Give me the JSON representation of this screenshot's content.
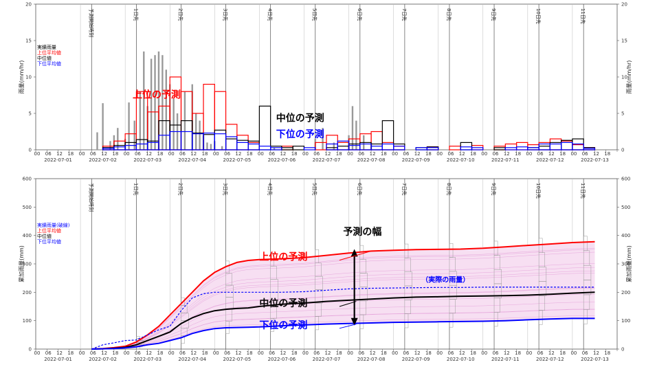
{
  "chart_data": [
    {
      "type": "bar",
      "title": "",
      "ylabel": "雨量(mm/hr)",
      "ylim": [
        0,
        20
      ],
      "yticks": [
        0,
        5,
        10,
        15,
        20
      ],
      "x_start": "2022-07-01 00:00",
      "x_end": "2022-07-13 24:00",
      "x_hour_labels": [
        "00",
        "06",
        "12",
        "18"
      ],
      "x_date_labels": [
        "2022-07-01",
        "2022-07-02",
        "2022-07-03",
        "2022-07-04",
        "2022-07-05",
        "2022-07-06",
        "2022-07-07",
        "2022-07-08",
        "2022-07-09",
        "2022-07-10",
        "2022-07-11",
        "2022-07-12",
        "2022-07-13"
      ],
      "forecast_start_label": "予測開始時刻",
      "day_markers": [
        "1日先",
        "2日先",
        "3日先",
        "4日先",
        "5日先",
        "6日先",
        "7日先",
        "8日先",
        "9日先",
        "10日先",
        "11日先"
      ],
      "legend": [
        {
          "label": "実績雨量",
          "color": "#000000"
        },
        {
          "label": "上位平均値",
          "color": "#ff0000"
        },
        {
          "label": "中位値",
          "color": "#000000"
        },
        {
          "label": "下位平均値",
          "color": "#0000ff"
        }
      ],
      "observed": {
        "name": "実績雨量",
        "x_hours": [
          33,
          36,
          40,
          42,
          44,
          48,
          50,
          53,
          56,
          58,
          60,
          62,
          64,
          66,
          68,
          70,
          72,
          74,
          76,
          80,
          84,
          86,
          88,
          90,
          92,
          94,
          96,
          100,
          128,
          150,
          154,
          160,
          168,
          170,
          172,
          176,
          180
        ],
        "values": [
          2.4,
          6.4,
          1.2,
          2.0,
          3.0,
          1.5,
          6.5,
          4.0,
          8.0,
          13.5,
          6.0,
          12.5,
          13.0,
          13.5,
          13.0,
          11.0,
          9.0,
          7.0,
          5.0,
          8.0,
          9.0,
          5.0,
          4.0,
          2.0,
          1.0,
          0.8,
          1.2,
          0.5,
          0.3,
          1.5,
          3.0,
          1.0,
          2.0,
          6.0,
          4.0,
          2.0,
          1.0
        ]
      },
      "series": [
        {
          "name": "上位の予測",
          "color": "#ff0000",
          "bins": [
            [
              36,
              42,
              0.5
            ],
            [
              42,
              48,
              1.2
            ],
            [
              48,
              54,
              2.2
            ],
            [
              54,
              60,
              8.0
            ],
            [
              60,
              66,
              5.2
            ],
            [
              66,
              72,
              6.0
            ],
            [
              72,
              78,
              10.0
            ],
            [
              78,
              84,
              8.0
            ],
            [
              84,
              90,
              5.0
            ],
            [
              90,
              96,
              9.0
            ],
            [
              96,
              102,
              8.0
            ],
            [
              102,
              108,
              3.5
            ],
            [
              108,
              114,
              2.0
            ],
            [
              114,
              120,
              1.0
            ],
            [
              132,
              138,
              0.5
            ],
            [
              150,
              156,
              1.0
            ],
            [
              156,
              162,
              2.0
            ],
            [
              162,
              168,
              1.0
            ],
            [
              168,
              174,
              1.5
            ],
            [
              174,
              180,
              2.2
            ],
            [
              180,
              186,
              2.5
            ],
            [
              186,
              192,
              1.0
            ],
            [
              192,
              198,
              0.5
            ],
            [
              210,
              216,
              0.4
            ],
            [
              222,
              228,
              0.5
            ],
            [
              234,
              240,
              0.6
            ],
            [
              246,
              252,
              0.5
            ],
            [
              252,
              258,
              0.8
            ],
            [
              258,
              264,
              1.0
            ],
            [
              264,
              270,
              0.7
            ],
            [
              270,
              276,
              1.0
            ],
            [
              276,
              282,
              1.5
            ],
            [
              282,
              288,
              1.2
            ],
            [
              288,
              294,
              0.7
            ],
            [
              294,
              300,
              0.3
            ]
          ]
        },
        {
          "name": "中位の予測",
          "color": "#000000",
          "bins": [
            [
              36,
              42,
              0.3
            ],
            [
              42,
              48,
              0.6
            ],
            [
              48,
              54,
              1.0
            ],
            [
              54,
              60,
              1.4
            ],
            [
              60,
              66,
              1.2
            ],
            [
              66,
              72,
              4.0
            ],
            [
              72,
              78,
              3.4
            ],
            [
              78,
              84,
              4.0
            ],
            [
              84,
              90,
              2.3
            ],
            [
              90,
              96,
              2.1
            ],
            [
              96,
              102,
              2.7
            ],
            [
              102,
              108,
              1.5
            ],
            [
              108,
              114,
              1.3
            ],
            [
              114,
              120,
              1.2
            ],
            [
              120,
              126,
              6.0
            ],
            [
              126,
              132,
              0.5
            ],
            [
              132,
              138,
              0.3
            ],
            [
              138,
              144,
              0.5
            ],
            [
              156,
              162,
              0.3
            ],
            [
              162,
              168,
              0.5
            ],
            [
              168,
              174,
              0.8
            ],
            [
              174,
              180,
              1.0
            ],
            [
              180,
              186,
              0.8
            ],
            [
              186,
              192,
              4.0
            ],
            [
              192,
              198,
              0.8
            ],
            [
              204,
              210,
              0.3
            ],
            [
              210,
              216,
              0.4
            ],
            [
              228,
              234,
              1.0
            ],
            [
              246,
              252,
              0.3
            ],
            [
              264,
              270,
              0.3
            ],
            [
              270,
              276,
              0.5
            ],
            [
              276,
              282,
              1.0
            ],
            [
              282,
              288,
              1.3
            ],
            [
              288,
              294,
              1.5
            ],
            [
              294,
              300,
              0.3
            ]
          ]
        },
        {
          "name": "下位の予測",
          "color": "#0000ff",
          "bins": [
            [
              36,
              42,
              0.2
            ],
            [
              42,
              48,
              0.4
            ],
            [
              48,
              54,
              0.6
            ],
            [
              54,
              60,
              0.8
            ],
            [
              60,
              66,
              1.0
            ],
            [
              66,
              72,
              2.0
            ],
            [
              72,
              78,
              2.5
            ],
            [
              78,
              84,
              2.5
            ],
            [
              84,
              90,
              2.2
            ],
            [
              90,
              96,
              2.3
            ],
            [
              96,
              102,
              2.2
            ],
            [
              102,
              108,
              1.8
            ],
            [
              108,
              114,
              1.0
            ],
            [
              114,
              120,
              0.8
            ],
            [
              120,
              126,
              0.5
            ],
            [
              126,
              132,
              0.3
            ],
            [
              144,
              150,
              0.3
            ],
            [
              156,
              162,
              0.8
            ],
            [
              162,
              168,
              1.2
            ],
            [
              168,
              174,
              0.6
            ],
            [
              174,
              180,
              0.8
            ],
            [
              180,
              186,
              0.5
            ],
            [
              186,
              192,
              0.8
            ],
            [
              192,
              198,
              0.5
            ],
            [
              204,
              210,
              0.3
            ],
            [
              210,
              216,
              0.3
            ],
            [
              228,
              234,
              0.4
            ],
            [
              234,
              240,
              0.3
            ],
            [
              252,
              258,
              0.3
            ],
            [
              258,
              264,
              0.4
            ],
            [
              264,
              270,
              0.3
            ],
            [
              270,
              276,
              0.8
            ],
            [
              276,
              282,
              0.8
            ],
            [
              282,
              288,
              1.0
            ],
            [
              288,
              294,
              0.8
            ],
            [
              294,
              300,
              0.2
            ]
          ]
        }
      ],
      "annotations": [
        {
          "text": "上位の予測",
          "color": "#ff0000",
          "x_hours": 52,
          "y": 7.1
        },
        {
          "text": "中位の予測",
          "color": "#000000",
          "x_hours": 129,
          "y": 3.9
        },
        {
          "text": "下位の予測",
          "color": "#0000ff",
          "x_hours": 129,
          "y": 1.7
        }
      ]
    },
    {
      "type": "line",
      "title": "",
      "ylabel": "累加雨量(mm)",
      "ylim": [
        0,
        600
      ],
      "yticks": [
        0,
        100,
        200,
        300,
        400,
        500,
        600
      ],
      "x_start": "2022-07-01 00:00",
      "x_end": "2022-07-13 24:00",
      "x_hour_labels": [
        "00",
        "06",
        "12",
        "18"
      ],
      "x_date_labels": [
        "2022-07-01",
        "2022-07-02",
        "2022-07-03",
        "2022-07-04",
        "2022-07-05",
        "2022-07-06",
        "2022-07-07",
        "2022-07-08",
        "2022-07-09",
        "2022-07-10",
        "2022-07-11",
        "2022-07-12",
        "2022-07-13"
      ],
      "forecast_start_label": "予測開始時刻",
      "day_markers": [
        "1日先",
        "2日先",
        "3日先",
        "4日先",
        "5日先",
        "6日先",
        "7日先",
        "8日先",
        "9日先",
        "10日先",
        "11日先"
      ],
      "legend": [
        {
          "label": "実績雨量(破線)",
          "color": "#0000ff"
        },
        {
          "label": "上位平均値",
          "color": "#ff0000"
        },
        {
          "label": "中位値",
          "color": "#000000"
        },
        {
          "label": "下位平均値",
          "color": "#0000ff"
        }
      ],
      "series": [
        {
          "name": "上位の予測",
          "color": "#ff0000",
          "x_hours": [
            30,
            36,
            42,
            48,
            54,
            60,
            66,
            72,
            78,
            84,
            90,
            96,
            102,
            108,
            114,
            120,
            132,
            144,
            156,
            168,
            180,
            192,
            204,
            216,
            228,
            240,
            252,
            264,
            276,
            288,
            300
          ],
          "y": [
            0,
            2,
            5,
            10,
            25,
            50,
            80,
            120,
            160,
            200,
            240,
            270,
            290,
            305,
            312,
            315,
            318,
            322,
            330,
            338,
            345,
            348,
            350,
            351,
            352,
            355,
            360,
            365,
            370,
            375,
            378
          ]
        },
        {
          "name": "中位の予測",
          "color": "#000000",
          "x_hours": [
            30,
            36,
            42,
            48,
            54,
            60,
            66,
            72,
            78,
            84,
            90,
            96,
            102,
            108,
            114,
            120,
            132,
            144,
            156,
            168,
            180,
            192,
            204,
            216,
            228,
            240,
            252,
            264,
            276,
            288,
            300
          ],
          "y": [
            0,
            1,
            3,
            6,
            15,
            30,
            45,
            60,
            90,
            110,
            125,
            135,
            140,
            143,
            145,
            150,
            158,
            162,
            168,
            172,
            176,
            180,
            183,
            184,
            186,
            187,
            188,
            190,
            193,
            197,
            200
          ]
        },
        {
          "name": "下位の予測",
          "color": "#0000ff",
          "x_hours": [
            30,
            36,
            42,
            48,
            54,
            60,
            66,
            72,
            78,
            84,
            90,
            96,
            102,
            108,
            114,
            120,
            132,
            144,
            156,
            168,
            180,
            192,
            204,
            216,
            228,
            240,
            252,
            264,
            276,
            288,
            300
          ],
          "y": [
            0,
            1,
            2,
            4,
            8,
            15,
            20,
            30,
            40,
            55,
            65,
            72,
            75,
            76,
            77,
            78,
            82,
            85,
            88,
            90,
            92,
            94,
            95,
            96,
            97,
            98,
            100,
            103,
            106,
            108,
            108
          ]
        },
        {
          "name": "実際の雨量",
          "color": "#0000ff",
          "dashed": true,
          "x_hours": [
            30,
            36,
            42,
            48,
            54,
            60,
            66,
            72,
            78,
            84,
            90,
            96,
            102,
            108,
            114,
            120,
            132,
            144,
            156,
            168,
            180,
            192,
            204,
            216,
            228,
            240,
            252,
            264,
            276,
            288,
            300
          ],
          "y": [
            0,
            15,
            22,
            30,
            32,
            50,
            68,
            80,
            135,
            180,
            195,
            200,
            200,
            200,
            200,
            200,
            200,
            202,
            207,
            212,
            214,
            215,
            216,
            217,
            217,
            218,
            218,
            218,
            218,
            218,
            218
          ]
        }
      ],
      "annotations": [
        {
          "text": "予測の幅",
          "color": "#000000",
          "x_hours": 165,
          "y": 402
        },
        {
          "text": "上位の予測",
          "color": "#ff0000",
          "x_hours": 120,
          "y": 313
        },
        {
          "text": "中位の予測",
          "color": "#000000",
          "x_hours": 120,
          "y": 150
        },
        {
          "text": "下位の予測",
          "color": "#0000ff",
          "x_hours": 120,
          "y": 73
        },
        {
          "text": "（実際の雨量）",
          "color": "#0000ff",
          "x_hours": 207,
          "y": 236
        }
      ]
    }
  ]
}
